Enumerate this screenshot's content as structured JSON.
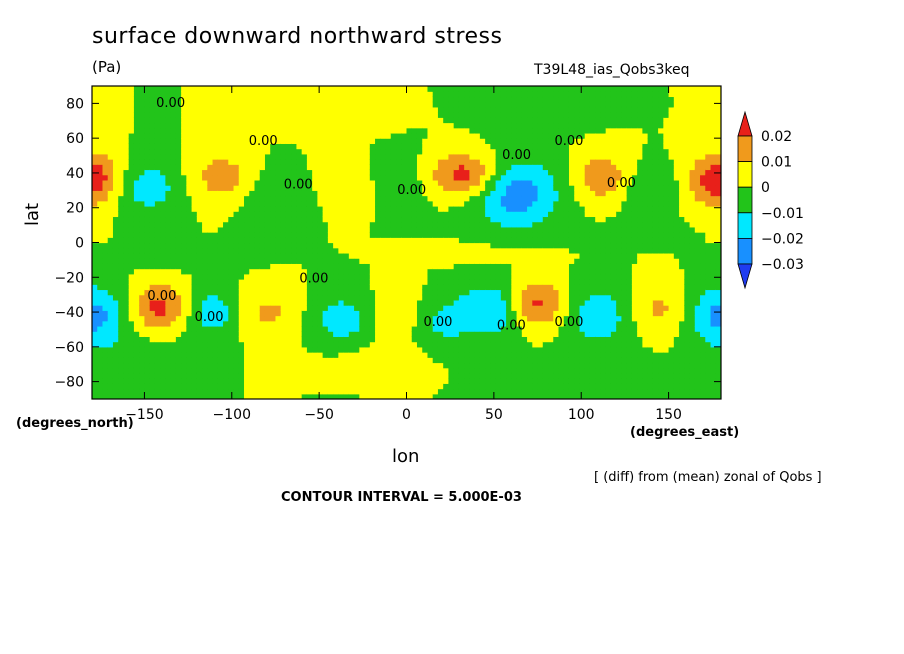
{
  "chart_data": {
    "type": "heatmap",
    "title": "surface downward northward stress",
    "units": "(Pa)",
    "run_label": "T39L48_ias_Qobs3keq",
    "xlabel": "lon",
    "ylabel": "lat",
    "x_unit_label": "(degrees_east)",
    "y_unit_label": "(degrees_north)",
    "xlim": [
      -180,
      180
    ],
    "ylim": [
      -90,
      90
    ],
    "x_ticks": [
      -150,
      -100,
      -50,
      0,
      50,
      100,
      150
    ],
    "y_ticks": [
      -80,
      -60,
      -40,
      -20,
      0,
      20,
      40,
      60,
      80
    ],
    "x_tick_labels": [
      "−150",
      "−100",
      "−50",
      "0",
      "50",
      "100",
      "150"
    ],
    "y_tick_labels": [
      "−80",
      "−60",
      "−40",
      "−20",
      "0",
      "20",
      "40",
      "60",
      "80"
    ],
    "colorbar": {
      "levels": [
        0.02,
        0.01,
        0,
        -0.01,
        -0.02,
        -0.03
      ],
      "labels": [
        "0.02",
        "0.01",
        "0",
        "−0.01",
        "−0.02",
        "−0.03"
      ],
      "colors": [
        "#e8201a",
        "#f09a1c",
        "#ffff00",
        "#22c41a",
        "#00e8ff",
        "#1890ff",
        "#1f3cf0"
      ]
    },
    "contour_label_text": "0.00",
    "note": "[ (diff) from (mean) zonal of Qobs ]",
    "contour_interval": "CONTOUR INTERVAL = 5.000E-03"
  }
}
